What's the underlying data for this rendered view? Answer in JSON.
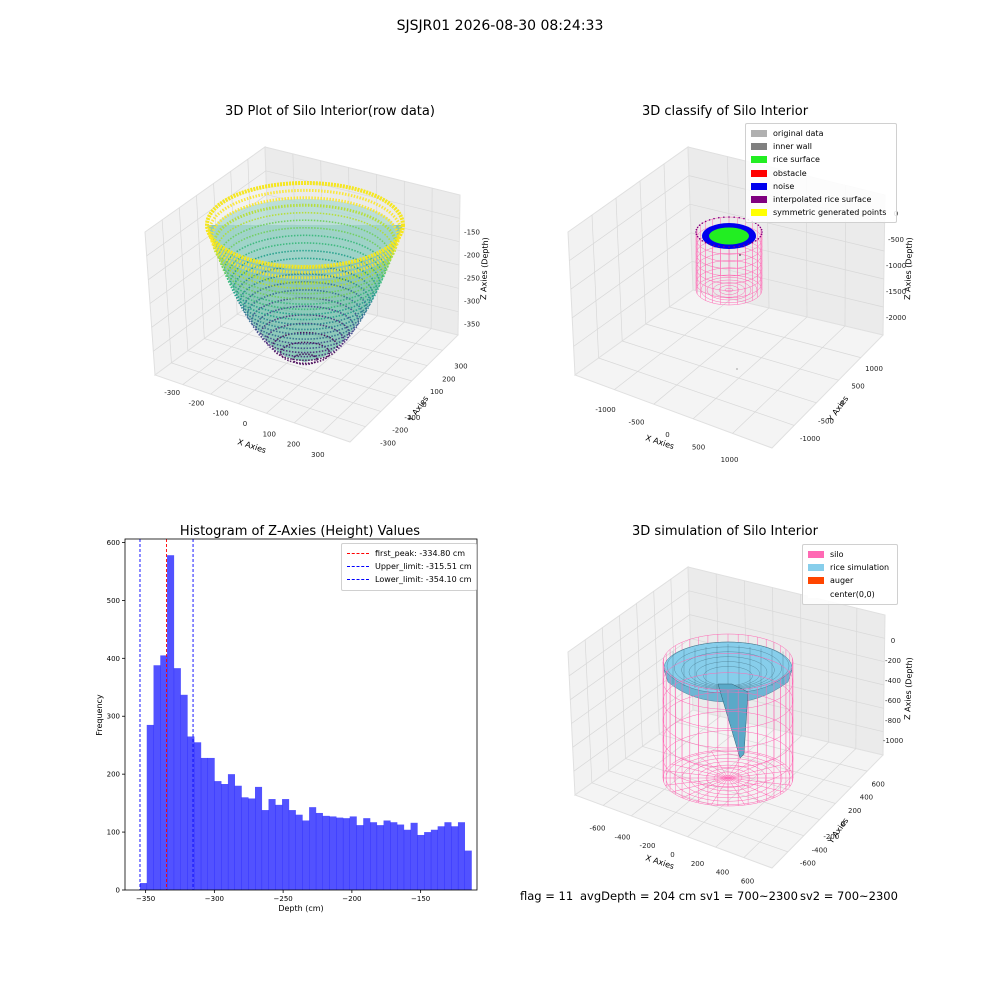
{
  "suptitle": "SJSJR01 2026-08-30 08:24:33",
  "panels": {
    "raw": {
      "title": "3D Plot of Silo Interior(row data)",
      "xlabel": "X Axies",
      "ylabel": "Y Axies",
      "zlabel": "Z Axies (Depth)",
      "x_ticks": [
        "-300",
        "-200",
        "-100",
        "0",
        "100",
        "200",
        "300"
      ],
      "y_ticks": [
        "300",
        "200",
        "100",
        "0",
        "-100",
        "-200",
        "-300"
      ],
      "z_ticks": [
        "-150",
        "-200",
        "-250",
        "-300",
        "-350"
      ]
    },
    "classify": {
      "title": "3D classify of Silo Interior",
      "xlabel": "X Axies",
      "ylabel": "Y Axies",
      "zlabel": "Z Axies (Depth)",
      "x_ticks": [
        "-1000",
        "-500",
        "0",
        "500",
        "1000"
      ],
      "y_ticks": [
        "1000",
        "500",
        "0",
        "-500",
        "-1000"
      ],
      "z_ticks": [
        "0",
        "-500",
        "-1000",
        "-1500",
        "-2000"
      ],
      "legend": [
        {
          "label": "original data",
          "color": "#b0b0b0"
        },
        {
          "label": "inner wall",
          "color": "#808080"
        },
        {
          "label": "rice surface",
          "color": "#22ee22"
        },
        {
          "label": "obstacle",
          "color": "#ff0000"
        },
        {
          "label": "noise",
          "color": "#0000ee"
        },
        {
          "label": "interpolated rice surface",
          "color": "#800080"
        },
        {
          "label": "symmetric generated points",
          "color": "#ffff00"
        }
      ]
    },
    "simulation": {
      "title": "3D simulation of Silo Interior",
      "xlabel": "X Axies",
      "ylabel": "Y Axies",
      "zlabel": "Z Axies (Depth)",
      "x_ticks": [
        "-600",
        "-400",
        "-200",
        "0",
        "200",
        "400",
        "600"
      ],
      "y_ticks": [
        "600",
        "400",
        "200",
        "0",
        "-200",
        "-400",
        "-600"
      ],
      "z_ticks": [
        "0",
        "-200",
        "-400",
        "-600",
        "-800",
        "-1000"
      ],
      "legend": [
        {
          "label": "silo",
          "color": "#ff69b4"
        },
        {
          "label": "rice simulation",
          "color": "#87ceeb"
        },
        {
          "label": "auger",
          "color": "#ff4500"
        },
        {
          "label": "center(0,0)",
          "color": "#ffffff"
        }
      ]
    }
  },
  "chart_data": {
    "type": "bar",
    "title": "Histogram of Z-Axies (Height) Values",
    "xlabel": "Depth (cm)",
    "ylabel": "Frequency",
    "xlim": [
      -365,
      -109
    ],
    "ylim": [
      0,
      606
    ],
    "x_ticks": [
      -350,
      -300,
      -250,
      -200,
      -150
    ],
    "y_ticks": [
      0,
      100,
      200,
      300,
      400,
      500,
      600
    ],
    "bar_color": "#0000ff",
    "bin_start": -354.1,
    "bin_width": 4.92,
    "counts": [
      12,
      285,
      388,
      405,
      578,
      383,
      337,
      265,
      255,
      228,
      228,
      188,
      183,
      200,
      180,
      160,
      158,
      178,
      138,
      157,
      147,
      157,
      138,
      130,
      120,
      143,
      133,
      128,
      127,
      125,
      124,
      127,
      112,
      124,
      117,
      112,
      120,
      117,
      113,
      104,
      116,
      95,
      100,
      104,
      110,
      117,
      110,
      117,
      68
    ],
    "vlines": [
      {
        "label": "first_peak: -334.80 cm",
        "x": -334.8,
        "color": "#ff0000"
      },
      {
        "label": "Upper_limit: -315.51 cm",
        "x": -315.51,
        "color": "#0000ff"
      },
      {
        "label": "Lower_limit: -354.10 cm",
        "x": -354.1,
        "color": "#0000ff"
      }
    ]
  },
  "footer": {
    "flag": "flag = 11",
    "avg": "avgDepth = 204 cm",
    "sv1": "sv1 = 700~2300",
    "sv2": "sv2 = 700~2300"
  }
}
